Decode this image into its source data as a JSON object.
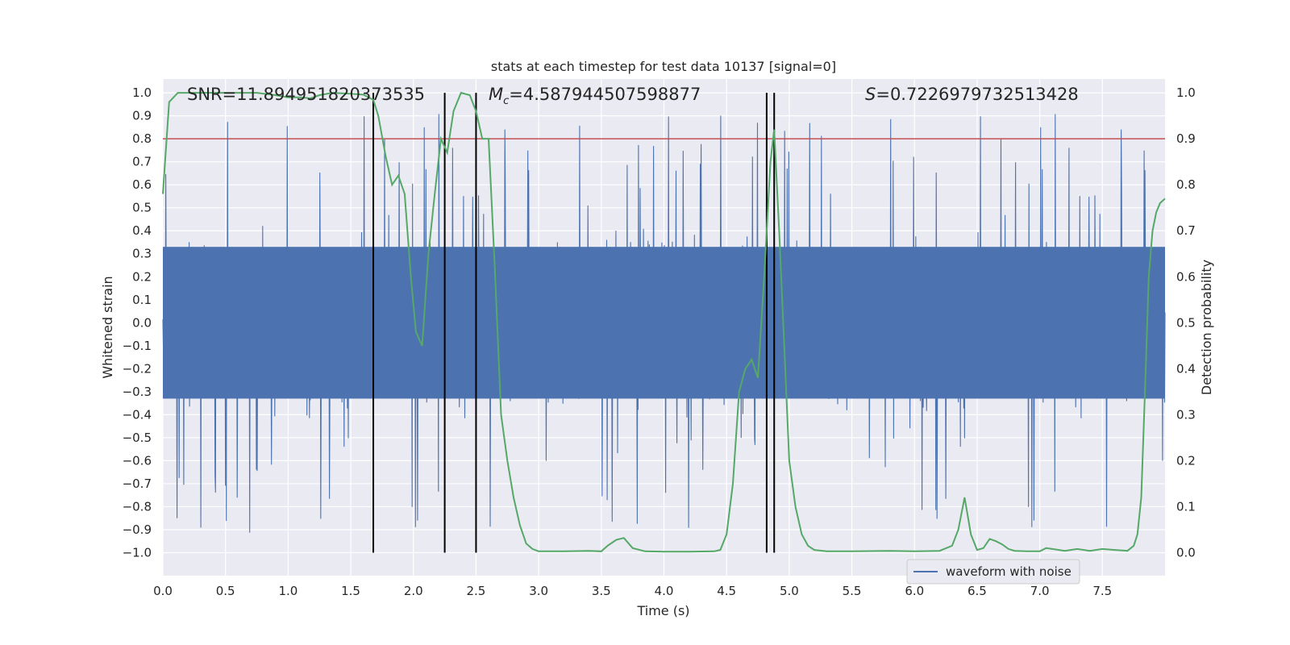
{
  "chart_data": {
    "type": "line",
    "title": "stats at each timestep for test data 10137 [signal=0]",
    "xlabel": "Time (s)",
    "ylabel": "Whitened strain",
    "y2label": "Detection probability",
    "xlim": [
      0.0,
      8.0
    ],
    "ylim": [
      -1.1,
      1.06
    ],
    "y2lim": [
      -0.05,
      1.03
    ],
    "xticks": [
      "0.0",
      "0.5",
      "1.0",
      "1.5",
      "2.0",
      "2.5",
      "3.0",
      "3.5",
      "4.0",
      "4.5",
      "5.0",
      "5.5",
      "6.0",
      "6.5",
      "7.0",
      "7.5"
    ],
    "yticks": [
      "1.0",
      "0.9",
      "0.8",
      "0.7",
      "0.6",
      "0.5",
      "0.4",
      "0.3",
      "0.2",
      "0.1",
      "0.0",
      "−0.1",
      "−0.2",
      "−0.3",
      "−0.4",
      "−0.5",
      "−0.6",
      "−0.7",
      "−0.8",
      "−0.9",
      "−1.0"
    ],
    "y2ticks": [
      "1.0",
      "0.9",
      "0.8",
      "0.7",
      "0.6",
      "0.5",
      "0.4",
      "0.3",
      "0.2",
      "0.1",
      "0.0"
    ],
    "annotations": {
      "snr": "SNR=11.894951820373535",
      "mc": "=4.587944507598877",
      "mc_symbol": "M",
      "mc_sub": "c",
      "s": "=0.7226979732513428",
      "s_symbol": "S"
    },
    "threshold": 0.9,
    "vlines": [
      1.68,
      2.25,
      2.5,
      4.82,
      4.88
    ],
    "legend": [
      "waveform with noise"
    ],
    "colors": {
      "waveform": "#4c72b0",
      "probability": "#55a868",
      "threshold": "#c44e52",
      "vlines": "#000000",
      "background": "#eaeaf2",
      "grid": "#ffffff"
    },
    "probability": {
      "x": [
        0.0,
        0.05,
        0.12,
        0.25,
        0.5,
        0.75,
        0.9,
        1.0,
        1.1,
        1.18,
        1.25,
        1.35,
        1.5,
        1.6,
        1.68,
        1.72,
        1.78,
        1.83,
        1.88,
        1.93,
        1.98,
        2.02,
        2.07,
        2.12,
        2.17,
        2.22,
        2.27,
        2.32,
        2.38,
        2.45,
        2.5,
        2.55,
        2.6,
        2.65,
        2.7,
        2.75,
        2.8,
        2.85,
        2.9,
        2.95,
        3.0,
        3.2,
        3.4,
        3.5,
        3.55,
        3.62,
        3.68,
        3.75,
        3.85,
        4.0,
        4.2,
        4.4,
        4.45,
        4.5,
        4.55,
        4.6,
        4.65,
        4.7,
        4.75,
        4.8,
        4.85,
        4.88,
        4.92,
        4.96,
        5.0,
        5.05,
        5.1,
        5.15,
        5.2,
        5.3,
        5.5,
        5.8,
        6.0,
        6.2,
        6.3,
        6.35,
        6.4,
        6.45,
        6.5,
        6.55,
        6.6,
        6.65,
        6.7,
        6.75,
        6.8,
        6.9,
        7.0,
        7.05,
        7.1,
        7.2,
        7.3,
        7.4,
        7.5,
        7.6,
        7.7,
        7.75,
        7.78,
        7.81,
        7.84,
        7.87,
        7.9,
        7.93,
        7.96,
        8.0
      ],
      "y": [
        0.78,
        0.98,
        1.0,
        1.0,
        1.0,
        1.0,
        0.995,
        0.99,
        0.99,
        0.988,
        0.995,
        1.0,
        0.998,
        0.996,
        0.985,
        0.95,
        0.86,
        0.8,
        0.82,
        0.78,
        0.6,
        0.48,
        0.45,
        0.65,
        0.78,
        0.9,
        0.87,
        0.96,
        1.0,
        0.995,
        0.96,
        0.9,
        0.9,
        0.62,
        0.3,
        0.2,
        0.12,
        0.06,
        0.02,
        0.008,
        0.003,
        0.003,
        0.004,
        0.003,
        0.015,
        0.028,
        0.032,
        0.01,
        0.003,
        0.002,
        0.002,
        0.003,
        0.006,
        0.04,
        0.15,
        0.35,
        0.4,
        0.42,
        0.38,
        0.6,
        0.85,
        0.92,
        0.7,
        0.45,
        0.2,
        0.1,
        0.04,
        0.015,
        0.006,
        0.003,
        0.003,
        0.004,
        0.003,
        0.004,
        0.015,
        0.05,
        0.12,
        0.04,
        0.006,
        0.01,
        0.03,
        0.025,
        0.018,
        0.008,
        0.004,
        0.003,
        0.003,
        0.01,
        0.008,
        0.004,
        0.008,
        0.004,
        0.008,
        0.006,
        0.004,
        0.015,
        0.04,
        0.12,
        0.35,
        0.6,
        0.7,
        0.74,
        0.76,
        0.77
      ]
    }
  }
}
